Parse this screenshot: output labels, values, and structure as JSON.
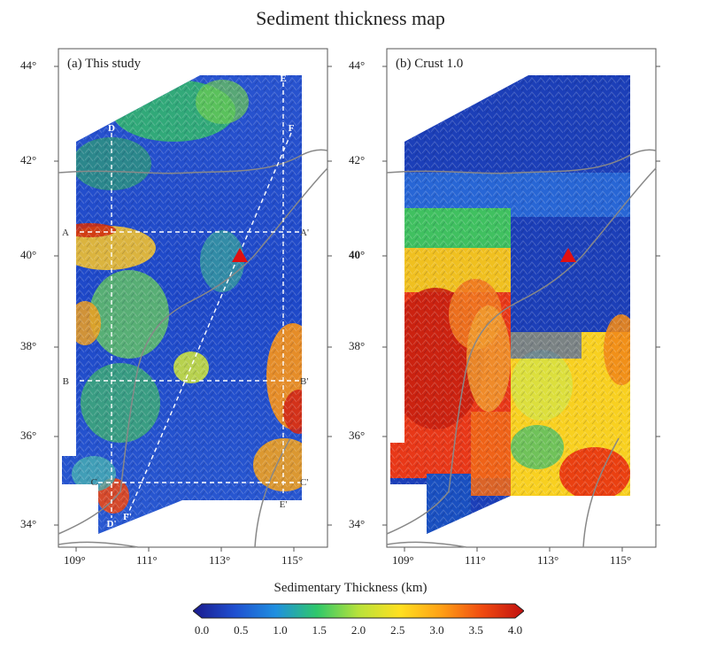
{
  "title": "Sediment thickness map",
  "panels": [
    {
      "label": "(a) This study",
      "lat_ticks": [
        "44°",
        "42°",
        "40°",
        "38°",
        "36°",
        "34°"
      ],
      "lon_ticks": [
        "109°",
        "111°",
        "113°",
        "115°"
      ],
      "profiles": [
        {
          "start": "A",
          "end": "A'"
        },
        {
          "start": "B",
          "end": "B'"
        },
        {
          "start": "C",
          "end": "C'"
        },
        {
          "start": "D",
          "end": "D'"
        },
        {
          "start": "E",
          "end": "E'"
        },
        {
          "start": "F",
          "end": "F'"
        }
      ],
      "station_marker": "red triangle"
    },
    {
      "label": "(b) Crust 1.0",
      "lat_ticks": [
        "44°",
        "42°",
        "40°",
        "38°",
        "36°",
        "34°"
      ],
      "lon_ticks": [
        "109°",
        "111°",
        "113°",
        "115°"
      ],
      "station_marker": "red triangle"
    }
  ],
  "colorbar": {
    "title": "Sedimentary Thickness (km)",
    "ticks": [
      "0.0",
      "0.5",
      "1.0",
      "1.5",
      "2.0",
      "2.5",
      "3.0",
      "3.5",
      "4.0"
    ],
    "colors": [
      "#1a1a8c",
      "#1f4fd0",
      "#1f8fe0",
      "#2fc86a",
      "#b8e23a",
      "#ffe020",
      "#ffa015",
      "#f04a10",
      "#c01010"
    ]
  }
}
